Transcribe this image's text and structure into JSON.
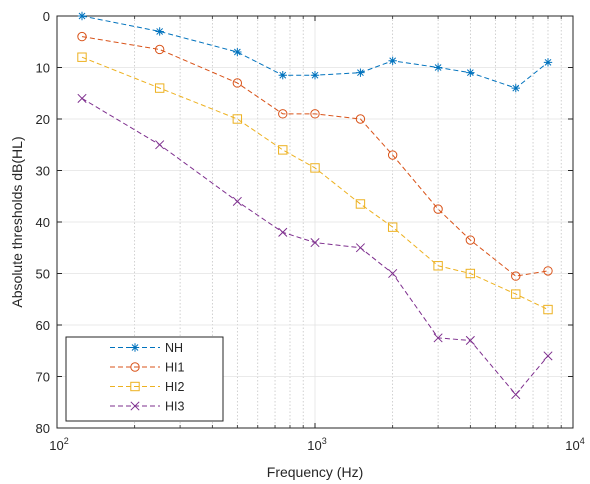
{
  "chart_data": {
    "type": "line",
    "xlabel": "Frequency (Hz)",
    "ylabel": "Absolute thresholds dB(HL)",
    "xscale": "log",
    "xlim": [
      100,
      10000
    ],
    "ylim": [
      0,
      80
    ],
    "y_reversed": true,
    "grid": true,
    "legend_position": "bottom-left",
    "x_ticks": [
      {
        "base": "10",
        "exp": "2",
        "value": 100
      },
      {
        "base": "10",
        "exp": "3",
        "value": 1000
      },
      {
        "base": "10",
        "exp": "4",
        "value": 10000
      }
    ],
    "y_ticks": [
      "0",
      "10",
      "20",
      "30",
      "40",
      "50",
      "60",
      "70",
      "80"
    ],
    "x": [
      125,
      250,
      500,
      750,
      1000,
      1500,
      2000,
      3000,
      4000,
      6000,
      8000
    ],
    "series": [
      {
        "name": "NH",
        "color": "#0072BD",
        "marker": "asterisk",
        "values": [
          0,
          3,
          7,
          11.5,
          11.5,
          11,
          8.7,
          10,
          11,
          14,
          9
        ]
      },
      {
        "name": "HI1",
        "color": "#D95319",
        "marker": "circle",
        "values": [
          4,
          6.5,
          13,
          19,
          19,
          20,
          27,
          37.5,
          43.5,
          50.5,
          49.5
        ]
      },
      {
        "name": "HI2",
        "color": "#EDB120",
        "marker": "square",
        "values": [
          8,
          14,
          20,
          26,
          29.5,
          36.5,
          41,
          48.5,
          50,
          54,
          57
        ]
      },
      {
        "name": "HI3",
        "color": "#7E2F8E",
        "marker": "x",
        "values": [
          16,
          25,
          36,
          42,
          44,
          45,
          50,
          62.5,
          63,
          73.5,
          66
        ]
      }
    ]
  }
}
